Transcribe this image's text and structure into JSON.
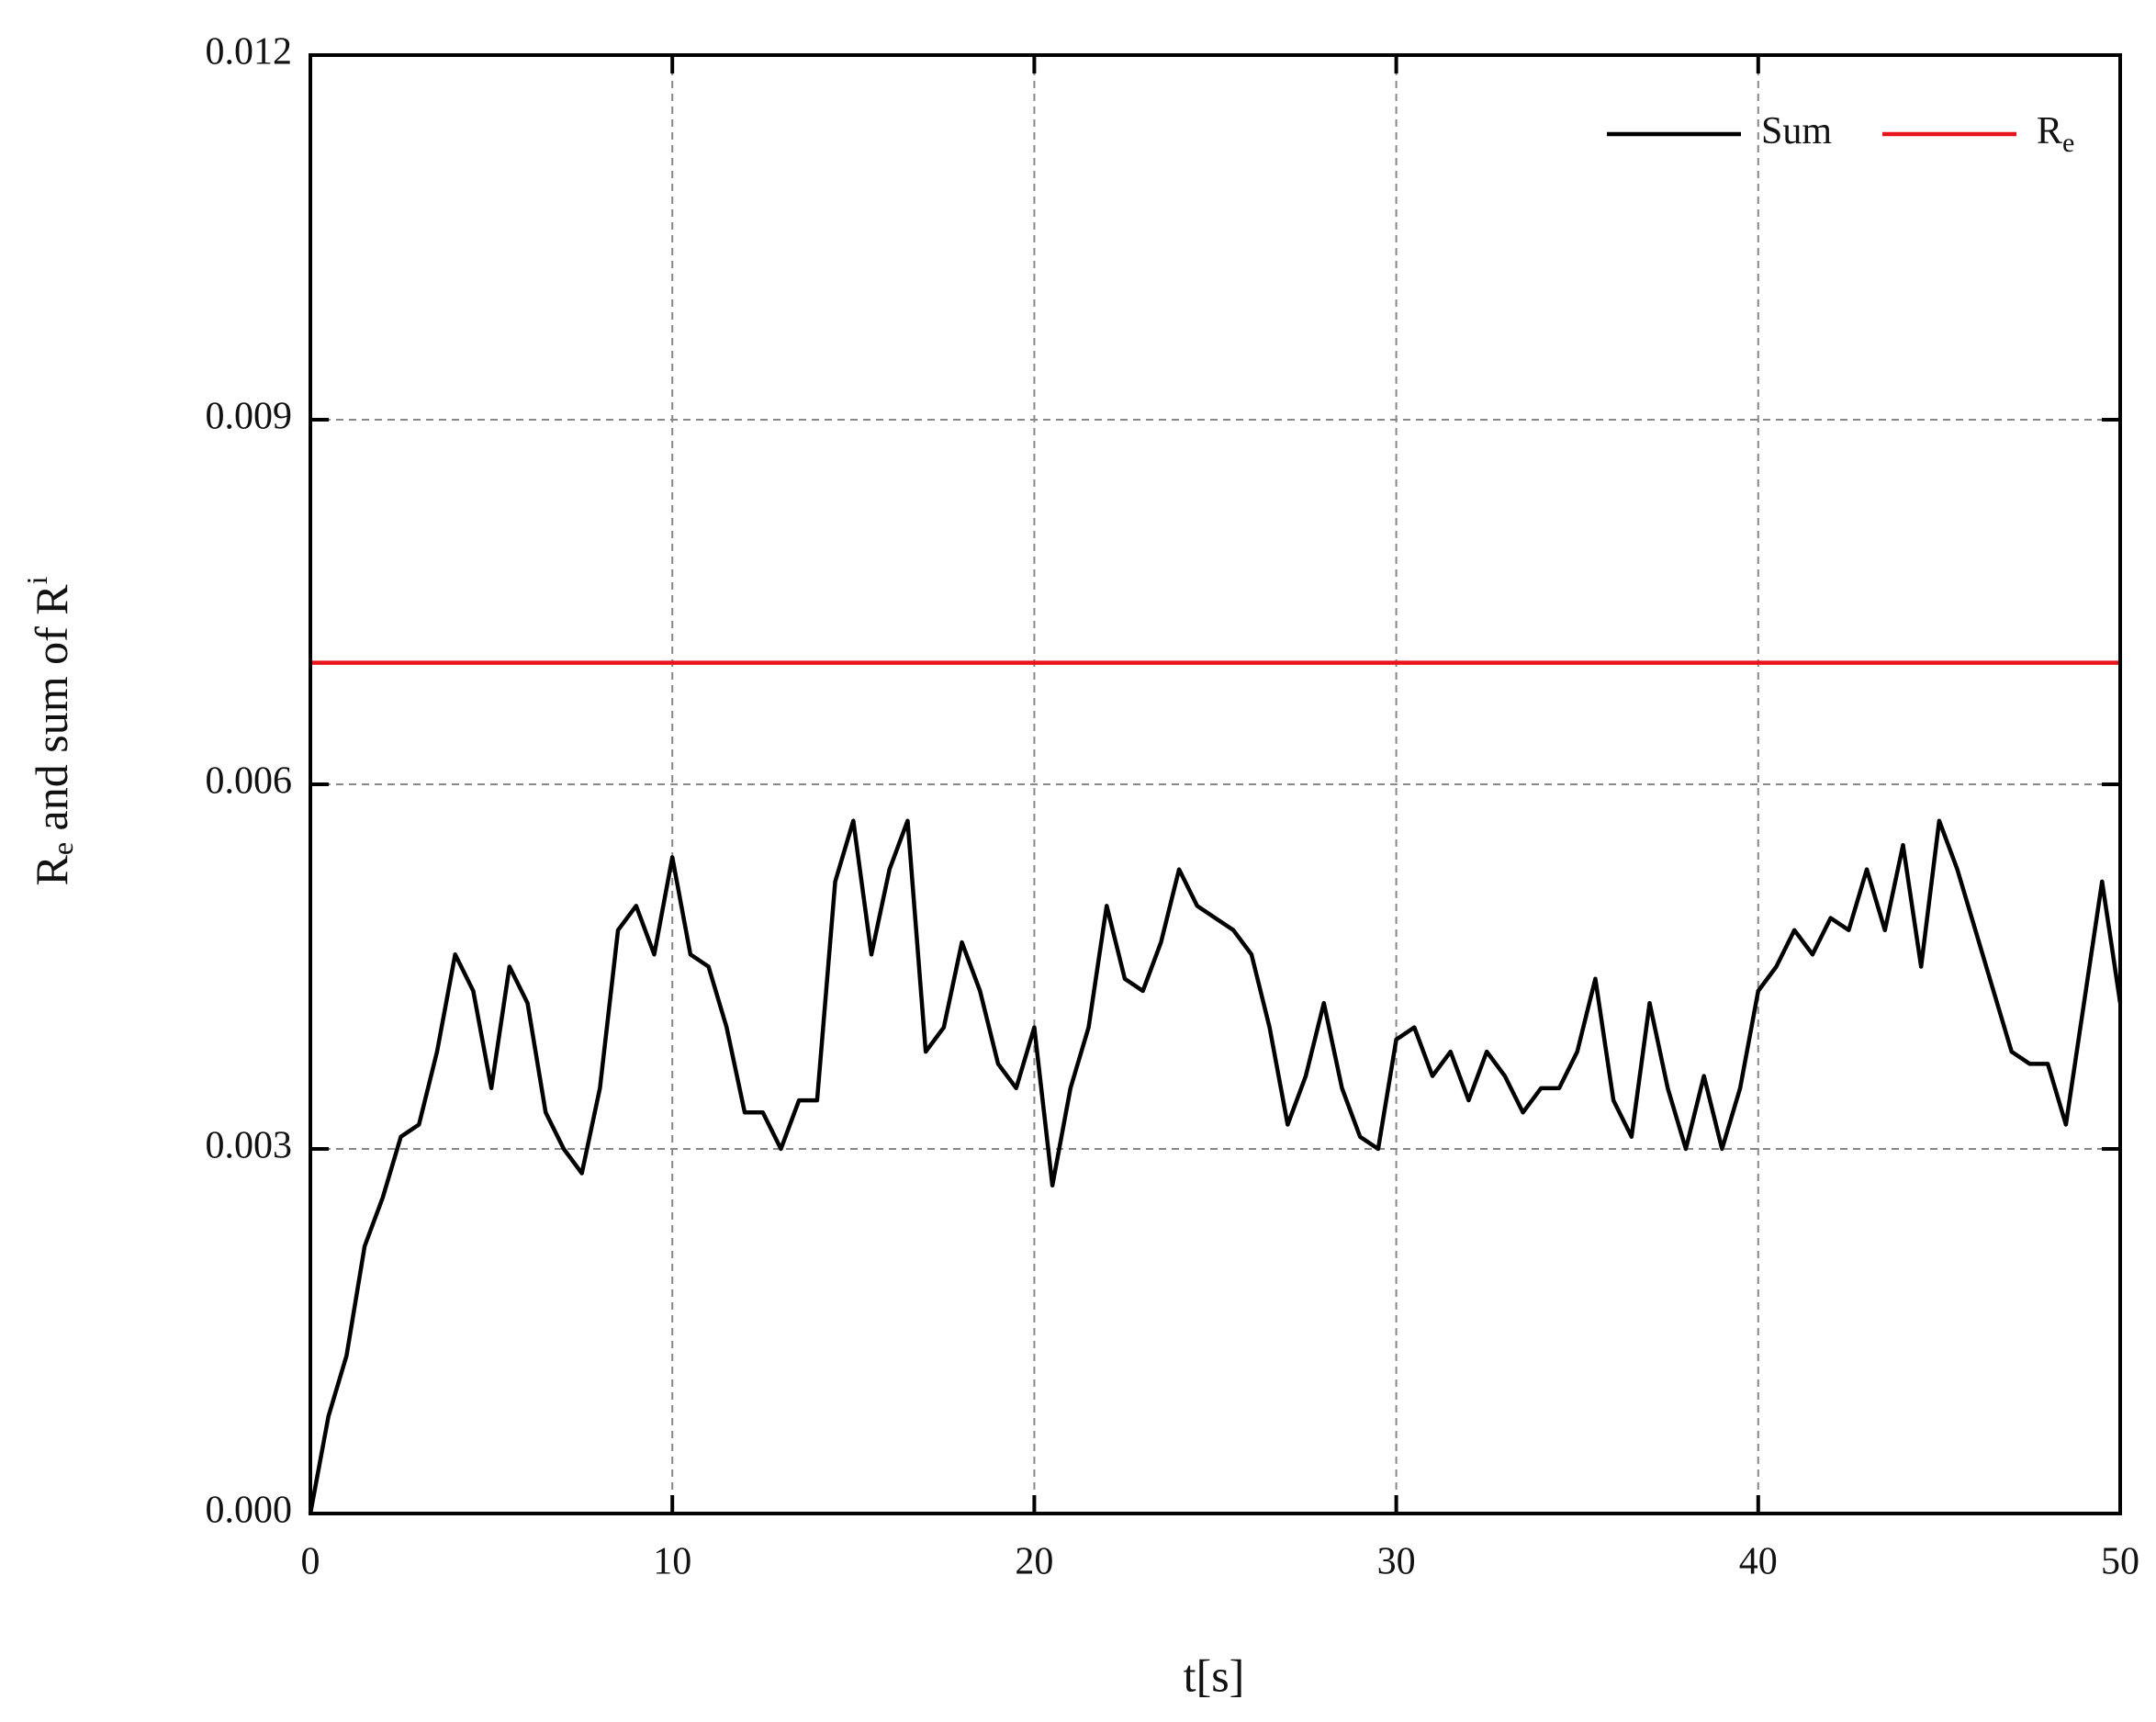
{
  "chart_data": {
    "type": "line",
    "xlabel": "t[s]",
    "ylabel": {
      "main": "R",
      "sub": "e",
      "rest": " and sum of R",
      "sup": "i"
    },
    "xlim": [
      0,
      50
    ],
    "xticks": [
      0,
      10,
      20,
      30,
      40,
      50
    ],
    "ylim": [
      0,
      0.012
    ],
    "yticks": [
      {
        "value": 0,
        "label": "0.000"
      },
      0.003,
      0.006,
      0.009,
      0.012
    ],
    "grid": true,
    "legend": "upper right",
    "series": [
      {
        "name": "Sum",
        "color": "#000000",
        "x": [
          0,
          0.5,
          1,
          1.5,
          2,
          2.5,
          3,
          3.5,
          4,
          4.5,
          5,
          5.5,
          6,
          6.5,
          7,
          7.5,
          8,
          8.5,
          9,
          9.5,
          10,
          10.5,
          11,
          11.5,
          12,
          12.5,
          13,
          13.5,
          14,
          14.5,
          15,
          15.5,
          16,
          16.5,
          17,
          17.5,
          18,
          18.5,
          19,
          19.5,
          20,
          20.5,
          21,
          21.5,
          22,
          22.5,
          23,
          23.5,
          24,
          24.5,
          25,
          25.5,
          26,
          26.5,
          27,
          27.5,
          28,
          28.5,
          29,
          29.5,
          30,
          30.5,
          31,
          31.5,
          32,
          32.5,
          33,
          33.5,
          34,
          34.5,
          35,
          35.5,
          36,
          36.5,
          37,
          37.5,
          38,
          38.5,
          39,
          39.5,
          40,
          40.5,
          41,
          41.5,
          42,
          42.5,
          43,
          43.5,
          44,
          44.5,
          45,
          45.5,
          46,
          46.5,
          47,
          47.5,
          48,
          48.5,
          49,
          49.5,
          50
        ],
        "values": [
          0,
          0.0008,
          0.0013,
          0.0022,
          0.0026,
          0.0031,
          0.0032,
          0.0038,
          0.0046,
          0.0043,
          0.0035,
          0.0045,
          0.0042,
          0.0033,
          0.003,
          0.0028,
          0.0035,
          0.0048,
          0.005,
          0.0046,
          0.0054,
          0.0046,
          0.0045,
          0.004,
          0.0033,
          0.0033,
          0.003,
          0.0034,
          0.0034,
          0.0052,
          0.0057,
          0.0046,
          0.0053,
          0.0057,
          0.0038,
          0.004,
          0.0047,
          0.0043,
          0.0037,
          0.0035,
          0.004,
          0.0027,
          0.0035,
          0.004,
          0.005,
          0.0044,
          0.0043,
          0.0047,
          0.0053,
          0.005,
          0.0049,
          0.0048,
          0.0046,
          0.004,
          0.0032,
          0.0036,
          0.0042,
          0.0035,
          0.0031,
          0.003,
          0.0039,
          0.004,
          0.0036,
          0.0038,
          0.0034,
          0.0038,
          0.0036,
          0.0033,
          0.0035,
          0.0035,
          0.0038,
          0.0044,
          0.0034,
          0.0031,
          0.0042,
          0.0035,
          0.003,
          0.0036,
          0.003,
          0.0035,
          0.0043,
          0.0045,
          0.0048,
          0.0046,
          0.0049,
          0.0048,
          0.0053,
          0.0048,
          0.0055,
          0.0045,
          0.0057,
          0.0053,
          0.0048,
          0.0043,
          0.0038,
          0.0037,
          0.0037,
          0.0032,
          0.0042,
          0.0052,
          0.0042
        ]
      },
      {
        "name": "R",
        "name_sub": "e",
        "color": "#e8141c",
        "x": [
          0,
          50
        ],
        "values": [
          0.007,
          0.007
        ]
      }
    ]
  }
}
